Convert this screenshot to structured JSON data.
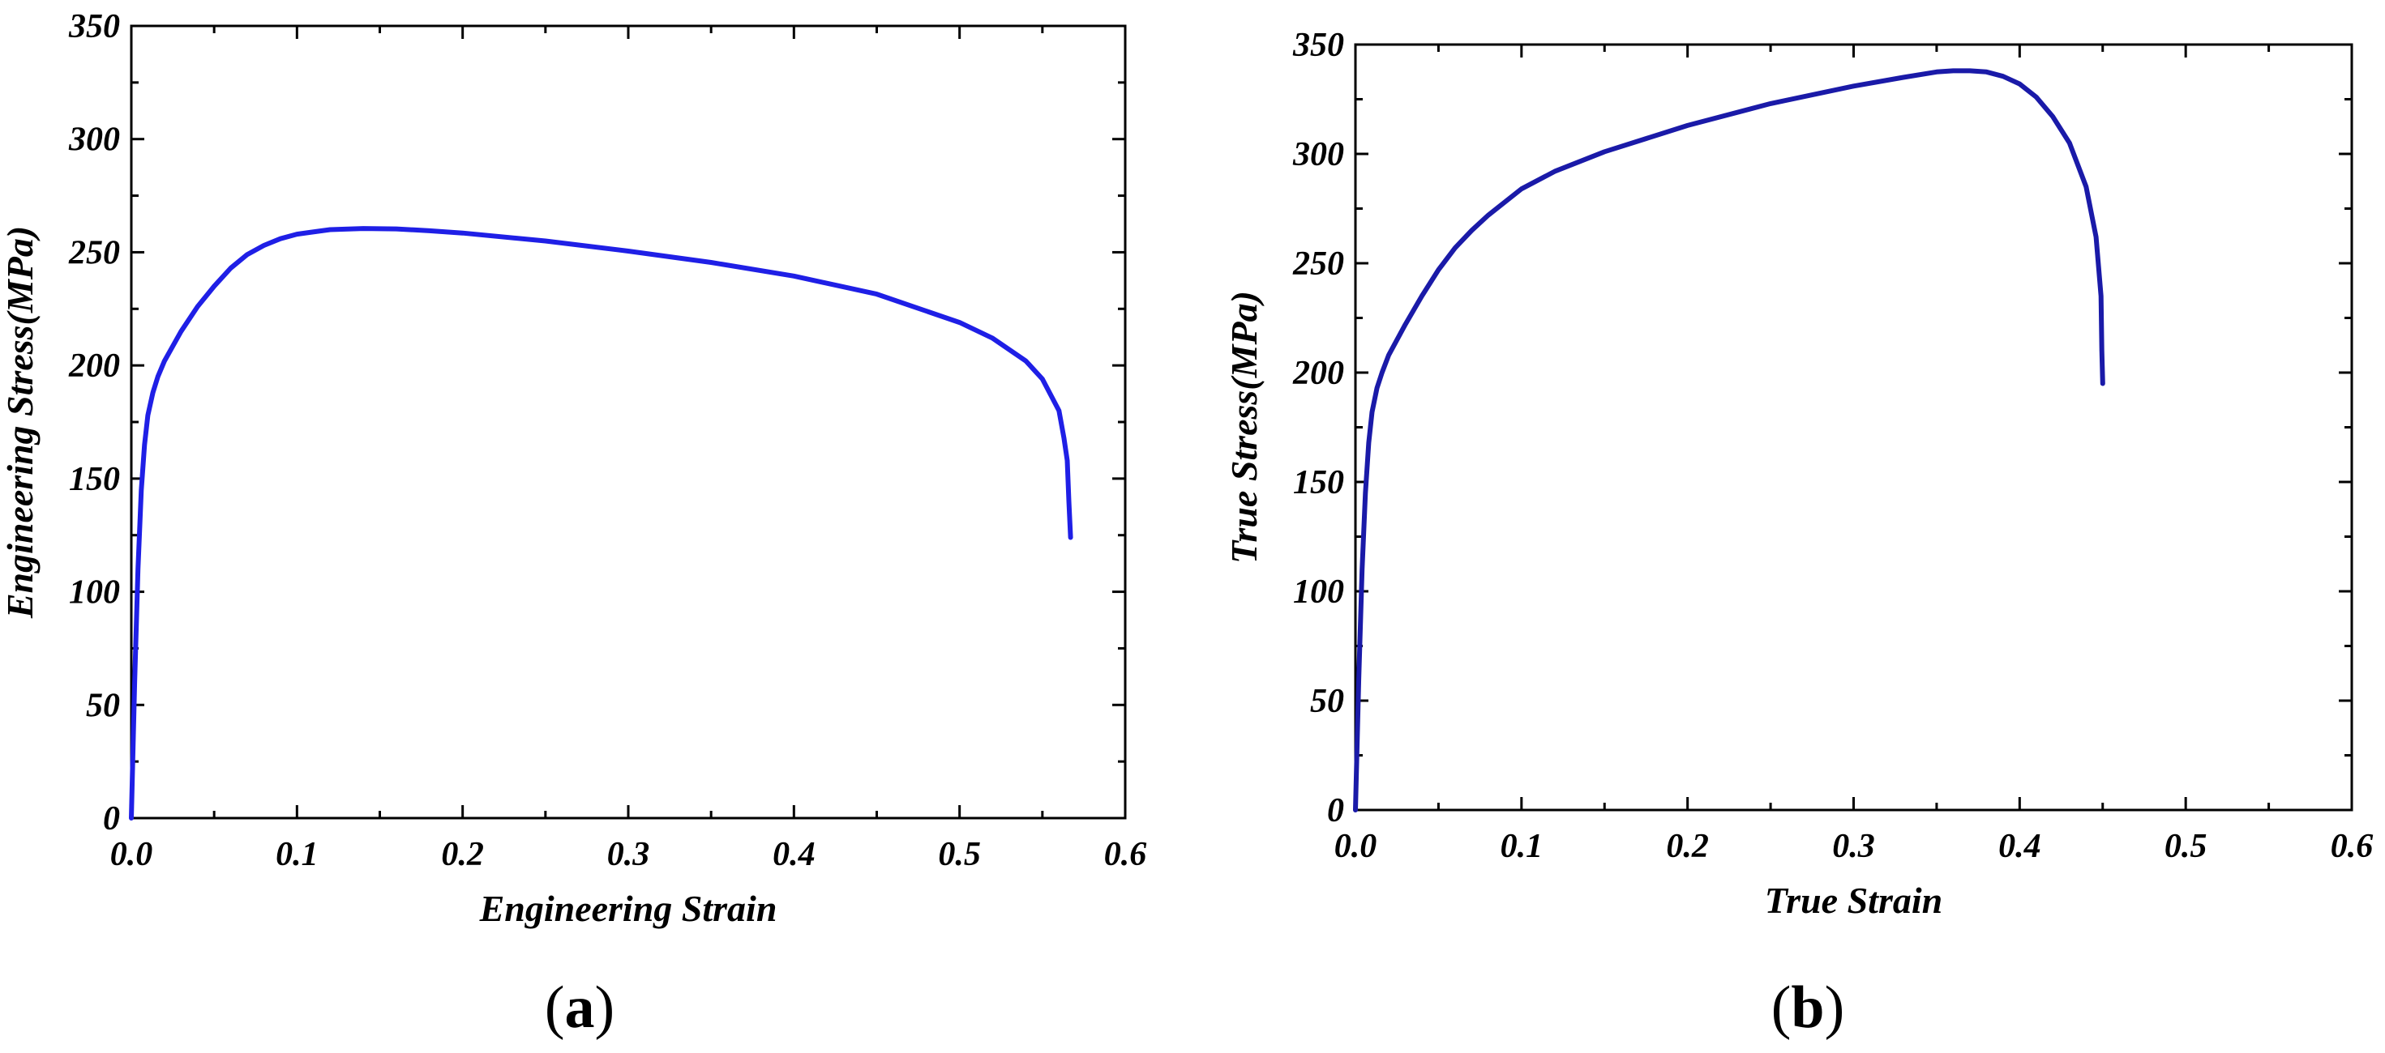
{
  "chart_data": [
    {
      "type": "line",
      "panel_label": "a",
      "xlabel": "Engineering Strain",
      "ylabel": "Engineering Stress(MPa)",
      "xlim": [
        0.0,
        0.6
      ],
      "ylim": [
        0,
        350
      ],
      "xticks": [
        "0.0",
        "0.1",
        "0.2",
        "0.3",
        "0.4",
        "0.5",
        "0.6"
      ],
      "yticks": [
        "0",
        "50",
        "100",
        "150",
        "200",
        "250",
        "300",
        "350"
      ],
      "grid": false,
      "color": "#1f1fe6",
      "series": [
        {
          "x": [
            0.0,
            0.002,
            0.004,
            0.006,
            0.008,
            0.01,
            0.013,
            0.016,
            0.02,
            0.03,
            0.04,
            0.05,
            0.06,
            0.07,
            0.08,
            0.09,
            0.1,
            0.12,
            0.14,
            0.16,
            0.18,
            0.2,
            0.25,
            0.3,
            0.35,
            0.4,
            0.45,
            0.5,
            0.52,
            0.54,
            0.55,
            0.56,
            0.563,
            0.565,
            0.566,
            0.567
          ],
          "y": [
            0,
            60,
            110,
            145,
            165,
            178,
            188,
            195,
            202,
            215,
            226,
            235,
            243,
            249,
            253,
            256,
            258,
            260,
            260.5,
            260.3,
            259.5,
            258.5,
            255,
            250.5,
            245.5,
            239.5,
            231.5,
            219,
            212,
            202,
            194,
            180,
            168,
            158,
            140,
            124
          ]
        }
      ]
    },
    {
      "type": "line",
      "panel_label": "b",
      "xlabel": "True  Strain",
      "ylabel": "True Stress(MPa)",
      "xlim": [
        0.0,
        0.6
      ],
      "ylim": [
        0,
        350
      ],
      "xticks": [
        "0.0",
        "0.1",
        "0.2",
        "0.3",
        "0.4",
        "0.5",
        "0.6"
      ],
      "yticks": [
        "0",
        "50",
        "100",
        "150",
        "200",
        "250",
        "300",
        "350"
      ],
      "grid": false,
      "color": "#1a1aa8",
      "series": [
        {
          "x": [
            0.0,
            0.002,
            0.004,
            0.006,
            0.008,
            0.01,
            0.013,
            0.016,
            0.02,
            0.03,
            0.04,
            0.05,
            0.06,
            0.07,
            0.08,
            0.1,
            0.12,
            0.15,
            0.2,
            0.25,
            0.3,
            0.33,
            0.35,
            0.36,
            0.37,
            0.38,
            0.39,
            0.4,
            0.41,
            0.42,
            0.43,
            0.44,
            0.446,
            0.449,
            0.4495,
            0.45
          ],
          "y": [
            0,
            60,
            110,
            145,
            168,
            182,
            193,
            200,
            208,
            222,
            235,
            247,
            257,
            265,
            272,
            284,
            292,
            301,
            313,
            323,
            331,
            335,
            337.5,
            338,
            338,
            337.5,
            335.5,
            332,
            326,
            317,
            305,
            285,
            262,
            235,
            210,
            195
          ]
        }
      ]
    }
  ]
}
